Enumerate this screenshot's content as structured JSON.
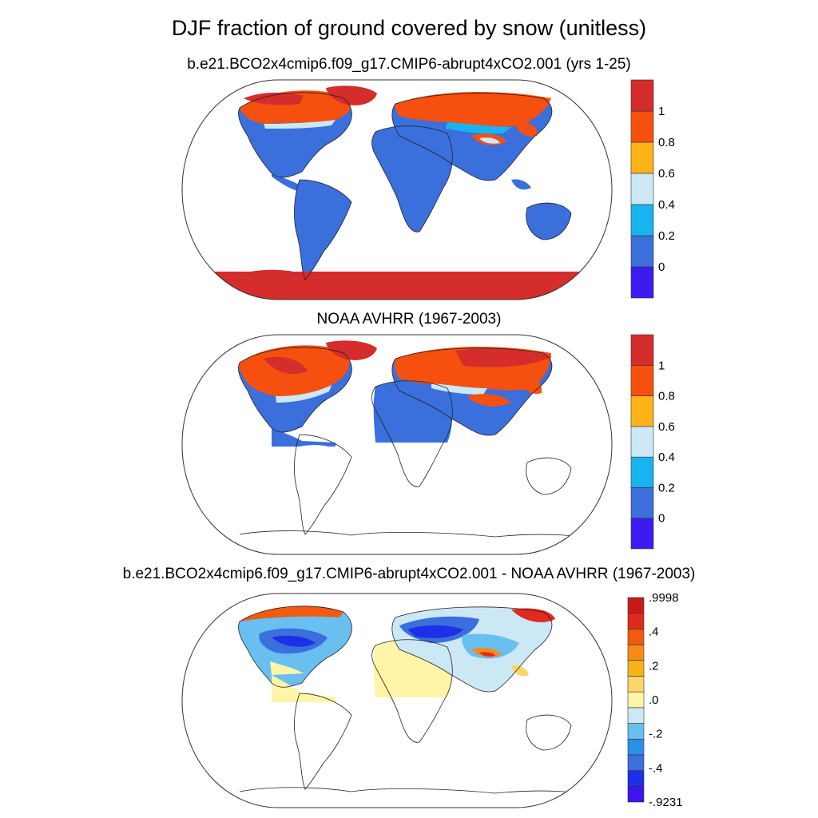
{
  "main_title": "DJF fraction of ground covered by snow (unitless)",
  "panels": [
    {
      "title": "b.e21.BCO2x4cmip6.f09_g17.CMIP6-abrupt4xCO2.001 (yrs 1-25)",
      "colorbar": {
        "colors": [
          "#3a1cf0",
          "#3a6fdc",
          "#19b4f0",
          "#cce8f5",
          "#fab418",
          "#f55010",
          "#d52c2c"
        ],
        "labels": [
          "0",
          "0.2",
          "0.4",
          "0.6",
          "0.8",
          "1"
        ]
      }
    },
    {
      "title": "NOAA AVHRR (1967-2003)",
      "colorbar": {
        "colors": [
          "#3a1cf0",
          "#3a6fdc",
          "#19b4f0",
          "#cce8f5",
          "#fab418",
          "#f55010",
          "#d52c2c"
        ],
        "labels": [
          "0",
          "0.2",
          "0.4",
          "0.6",
          "0.8",
          "1"
        ]
      }
    },
    {
      "title": "b.e21.BCO2x4cmip6.f09_g17.CMIP6-abrupt4xCO2.001 - NOAA AVHRR (1967-2003)",
      "colorbar": {
        "colors": [
          "#3c14ee",
          "#1c30e8",
          "#3a6fdc",
          "#2a90e6",
          "#69bff0",
          "#cce8f5",
          "#fff5a8",
          "#fbd56a",
          "#f9b31a",
          "#f78b14",
          "#f25a10",
          "#e02a1c",
          "#c81a1a"
        ],
        "labels": [
          ".9998",
          ".4",
          ".2",
          ".0",
          "-.2",
          "-.4",
          "-.9231"
        ]
      }
    }
  ]
}
